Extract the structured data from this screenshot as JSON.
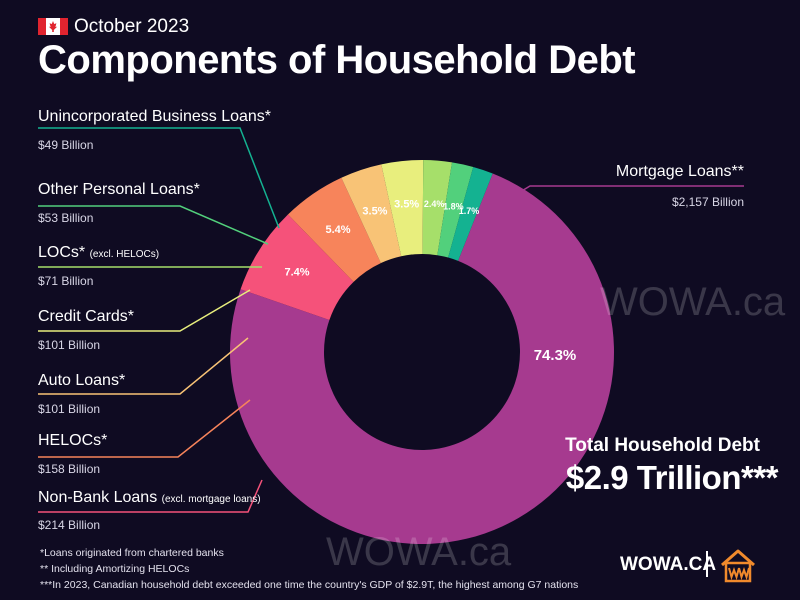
{
  "header": {
    "date": "October 2023",
    "title": "Components of Household Debt",
    "flag_icon": "canada-flag-icon"
  },
  "chart_data": {
    "type": "pie",
    "style": "donut",
    "slices": [
      {
        "label": "Mortgage Loans**",
        "value_text": "$2,157 Billion",
        "value": 2157,
        "percent": 74.3,
        "percent_label": "74.3%",
        "color": "#a63a8f"
      },
      {
        "label": "Non-Bank Loans",
        "label_note": "(excl. mortgage loans)",
        "value_text": "$214 Billion",
        "value": 214,
        "percent": 7.4,
        "percent_label": "7.4%",
        "color": "#f5527a"
      },
      {
        "label": "HELOCs*",
        "value_text": "$158 Billion",
        "value": 158,
        "percent": 5.4,
        "percent_label": "5.4%",
        "color": "#f7845b"
      },
      {
        "label": "Auto Loans*",
        "value_text": "$101 Billion",
        "value": 101,
        "percent": 3.5,
        "percent_label": "3.5%",
        "color": "#f8c376"
      },
      {
        "label": "Credit Cards*",
        "value_text": "$101 Billion",
        "value": 101,
        "percent": 3.5,
        "percent_label": "3.5%",
        "color": "#e8ee7d"
      },
      {
        "label": "LOCs*",
        "label_note": "(excl. HELOCs)",
        "value_text": "$71 Billion",
        "value": 71,
        "percent": 2.4,
        "percent_label": "2.4%",
        "color": "#a6df6a"
      },
      {
        "label": "Other Personal Loans*",
        "value_text": "$53 Billion",
        "value": 53,
        "percent": 1.8,
        "percent_label": "1.8%",
        "color": "#52d07c"
      },
      {
        "label": "Unincorporated Business Loans*",
        "value_text": "$49 Billion",
        "value": 49,
        "percent": 1.7,
        "percent_label": "1.7%",
        "color": "#14b291"
      }
    ]
  },
  "total": {
    "label": "Total Household Debt",
    "value": "$2.9 Trillion***"
  },
  "watermark": "WOWA.ca",
  "footnotes": [
    "*Loans originated from chartered banks",
    "** Including Amortizing HELOCs",
    "***In 2023, Canadian household debt exceeded one time the country's GDP of $2.9T, the highest among G7 nations"
  ],
  "brand": {
    "name": "WOWA.CA",
    "logo_icon": "wowa-house-logo-icon",
    "accent": "#f08a2c"
  }
}
